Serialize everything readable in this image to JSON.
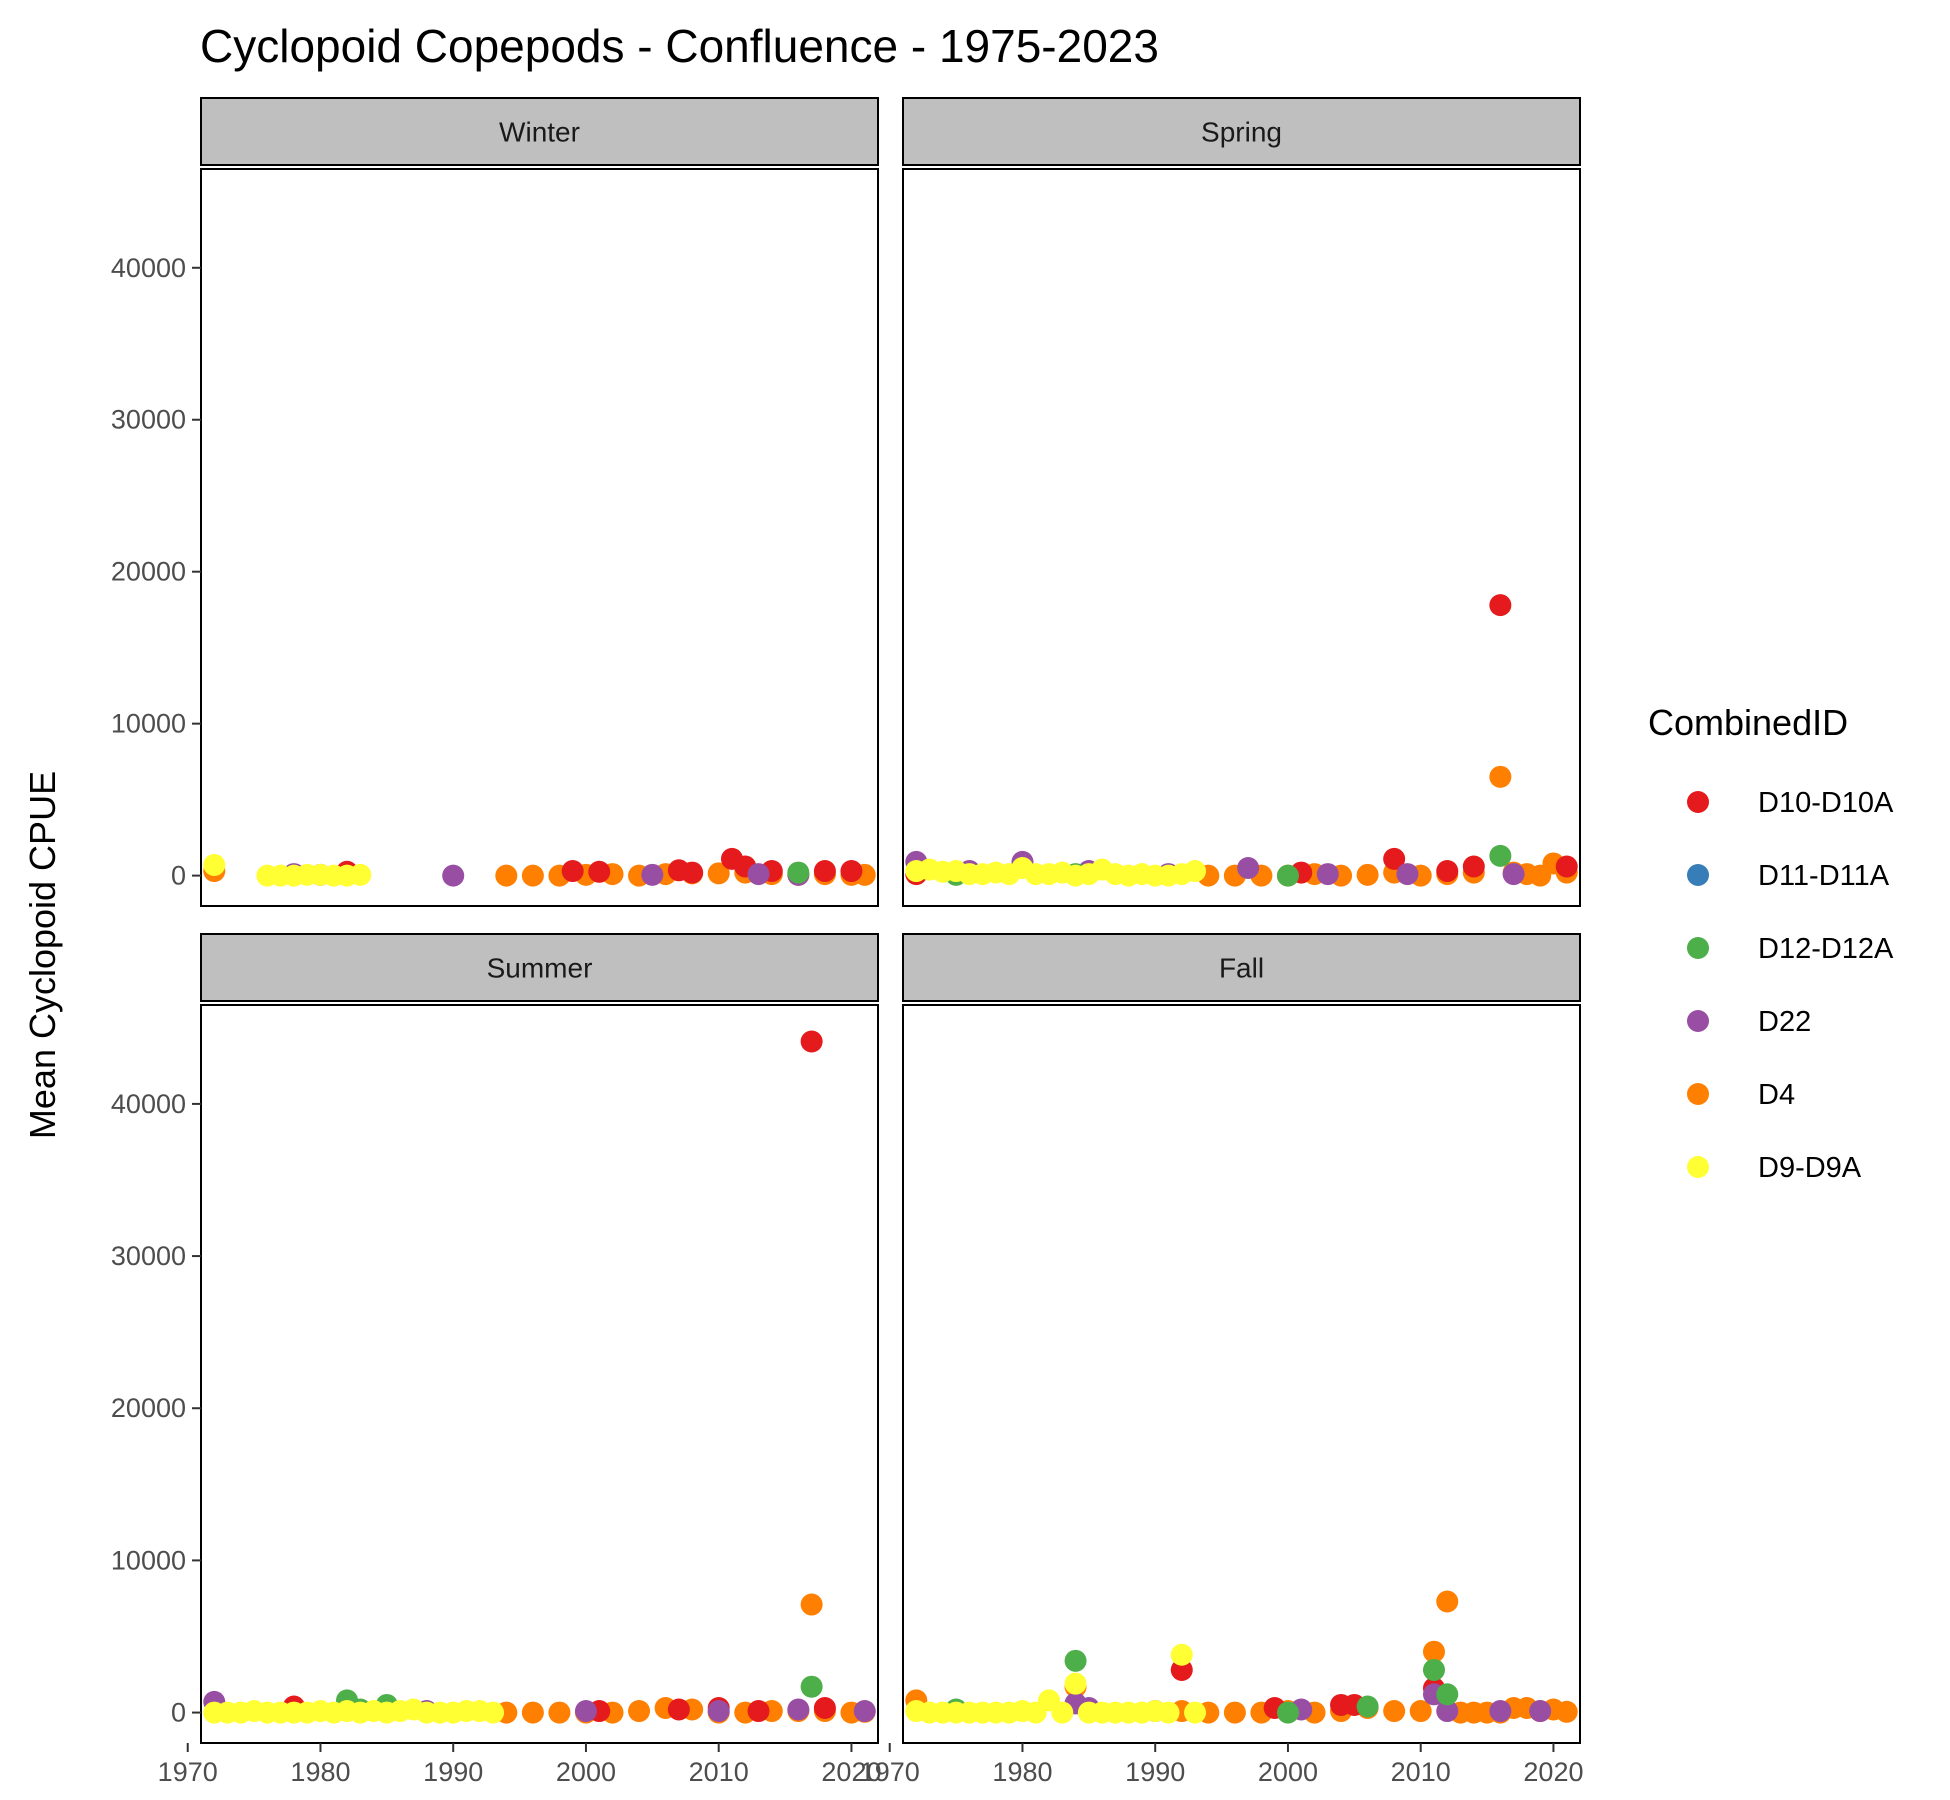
{
  "chart_data": {
    "type": "scatter",
    "title": "Cyclopoid Copepods - Confluence - 1975-2023",
    "xlabel": "",
    "ylabel": "Mean Cyclopoid CPUE",
    "xlim": [
      1971,
      2022
    ],
    "ylim": [
      -2000,
      46500
    ],
    "x_ticks": [
      1970,
      1980,
      1990,
      2000,
      2010,
      2020
    ],
    "y_ticks": [
      0,
      10000,
      20000,
      30000,
      40000
    ],
    "grid": false,
    "legend": {
      "title": "CombinedID",
      "placement": "right",
      "entries": [
        {
          "name": "D10-D10A",
          "color": "#E41A1C"
        },
        {
          "name": "D11-D11A",
          "color": "#377EB8"
        },
        {
          "name": "D12-D12A",
          "color": "#4DAF4A"
        },
        {
          "name": "D22",
          "color": "#984EA3"
        },
        {
          "name": "D4",
          "color": "#FF7F00"
        },
        {
          "name": "D9-D9A",
          "color": "#FFFF33"
        }
      ]
    },
    "panels": [
      {
        "name": "Winter",
        "series": [
          {
            "name": "D4",
            "x": [
              1972,
              1994,
              1996,
              1998,
              2000,
              2002,
              2004,
              2006,
              2008,
              2010,
              2012,
              2014,
              2016,
              2018,
              2020,
              2021
            ],
            "y": [
              300,
              0,
              0,
              0,
              50,
              100,
              0,
              100,
              150,
              150,
              200,
              100,
              50,
              100,
              50,
              50
            ]
          },
          {
            "name": "D10-D10A",
            "x": [
              1982,
              1999,
              2001,
              2007,
              2008,
              2011,
              2012,
              2014,
              2018,
              2020
            ],
            "y": [
              250,
              300,
              250,
              350,
              200,
              1100,
              600,
              300,
              300,
              300
            ]
          },
          {
            "name": "D22",
            "x": [
              1978,
              1980,
              1990,
              2005,
              2013,
              2016
            ],
            "y": [
              100,
              50,
              0,
              50,
              100,
              50
            ]
          },
          {
            "name": "D12-D12A",
            "x": [
              2016
            ],
            "y": [
              200
            ]
          },
          {
            "name": "D9-D9A",
            "x": [
              1972,
              1976,
              1977,
              1978,
              1979,
              1980,
              1981,
              1982,
              1983
            ],
            "y": [
              700,
              0,
              0,
              0,
              50,
              50,
              0,
              0,
              50
            ]
          }
        ]
      },
      {
        "name": "Spring",
        "series": [
          {
            "name": "D4",
            "x": [
              1994,
              1996,
              1998,
              2000,
              2002,
              2004,
              2006,
              2008,
              2010,
              2012,
              2014,
              2016,
              2017,
              2018,
              2019,
              2020,
              2021
            ],
            "y": [
              0,
              0,
              0,
              0,
              100,
              0,
              50,
              200,
              0,
              100,
              200,
              6500,
              200,
              100,
              0,
              800,
              200
            ]
          },
          {
            "name": "D10-D10A",
            "x": [
              1972,
              2001,
              2008,
              2012,
              2014,
              2016,
              2021
            ],
            "y": [
              100,
              200,
              1100,
              300,
              600,
              17800,
              600
            ]
          },
          {
            "name": "D22",
            "x": [
              1972,
              1976,
              1980,
              1985,
              1991,
              1997,
              2003,
              2009,
              2017
            ],
            "y": [
              900,
              300,
              900,
              300,
              100,
              500,
              100,
              100,
              100
            ]
          },
          {
            "name": "D12-D12A",
            "x": [
              1975,
              1984,
              2000,
              2016
            ],
            "y": [
              50,
              100,
              0,
              1300
            ]
          },
          {
            "name": "D9-D9A",
            "x": [
              1972,
              1973,
              1974,
              1975,
              1976,
              1977,
              1978,
              1979,
              1980,
              1981,
              1982,
              1983,
              1984,
              1985,
              1986,
              1987,
              1988,
              1989,
              1990,
              1991,
              1992,
              1993
            ],
            "y": [
              300,
              400,
              250,
              300,
              100,
              100,
              200,
              100,
              500,
              100,
              100,
              200,
              0,
              100,
              400,
              100,
              0,
              100,
              0,
              0,
              100,
              300
            ]
          }
        ]
      },
      {
        "name": "Summer",
        "series": [
          {
            "name": "D4",
            "x": [
              1994,
              1996,
              1998,
              2000,
              2002,
              2004,
              2006,
              2008,
              2010,
              2012,
              2014,
              2016,
              2017,
              2018,
              2020,
              2021
            ],
            "y": [
              0,
              0,
              0,
              0,
              0,
              100,
              300,
              200,
              0,
              0,
              100,
              100,
              7100,
              100,
              0,
              50
            ]
          },
          {
            "name": "D10-D10A",
            "x": [
              1978,
              2001,
              2007,
              2010,
              2013,
              2017,
              2018
            ],
            "y": [
              400,
              100,
              200,
              300,
              100,
              44100,
              300
            ]
          },
          {
            "name": "D22",
            "x": [
              1972,
              1988,
              2000,
              2010,
              2016,
              2021
            ],
            "y": [
              700,
              100,
              100,
              100,
              200,
              100
            ]
          },
          {
            "name": "D12-D12A",
            "x": [
              1982,
              1983,
              1985,
              2017
            ],
            "y": [
              800,
              200,
              500,
              1700
            ]
          },
          {
            "name": "D9-D9A",
            "x": [
              1972,
              1973,
              1974,
              1975,
              1976,
              1977,
              1978,
              1979,
              1980,
              1981,
              1982,
              1983,
              1984,
              1985,
              1986,
              1987,
              1988,
              1989,
              1990,
              1991,
              1992,
              1993
            ],
            "y": [
              0,
              0,
              0,
              100,
              0,
              0,
              0,
              0,
              100,
              0,
              100,
              0,
              100,
              0,
              100,
              200,
              0,
              0,
              0,
              100,
              100,
              0
            ]
          }
        ]
      },
      {
        "name": "Fall",
        "series": [
          {
            "name": "D4",
            "x": [
              1972,
              1984,
              1992,
              1994,
              1996,
              1998,
              2000,
              2002,
              2004,
              2006,
              2008,
              2010,
              2011,
              2012,
              2013,
              2014,
              2015,
              2016,
              2017,
              2018,
              2019,
              2020,
              2021
            ],
            "y": [
              800,
              1700,
              100,
              0,
              0,
              0,
              100,
              0,
              100,
              300,
              100,
              100,
              4000,
              7300,
              0,
              0,
              0,
              0,
              300,
              300,
              100,
              200,
              50
            ]
          },
          {
            "name": "D10-D10A",
            "x": [
              1992,
              1999,
              2004,
              2005,
              2011
            ],
            "y": [
              2800,
              300,
              500,
              500,
              1600
            ]
          },
          {
            "name": "D22",
            "x": [
              1984,
              1985,
              1990,
              2001,
              2011,
              2012,
              2016,
              2019
            ],
            "y": [
              600,
              300,
              100,
              200,
              1200,
              100,
              100,
              100
            ]
          },
          {
            "name": "D12-D12A",
            "x": [
              1975,
              1984,
              2000,
              2006,
              2011,
              2012
            ],
            "y": [
              200,
              3400,
              0,
              400,
              2800,
              1200
            ]
          },
          {
            "name": "D9-D9A",
            "x": [
              1972,
              1973,
              1974,
              1975,
              1976,
              1977,
              1978,
              1979,
              1980,
              1981,
              1982,
              1983,
              1984,
              1985,
              1986,
              1987,
              1988,
              1989,
              1990,
              1991,
              1992,
              1993
            ],
            "y": [
              100,
              0,
              0,
              0,
              0,
              0,
              0,
              0,
              100,
              0,
              800,
              0,
              1900,
              0,
              0,
              0,
              0,
              0,
              100,
              0,
              3800,
              0
            ]
          }
        ]
      }
    ]
  }
}
